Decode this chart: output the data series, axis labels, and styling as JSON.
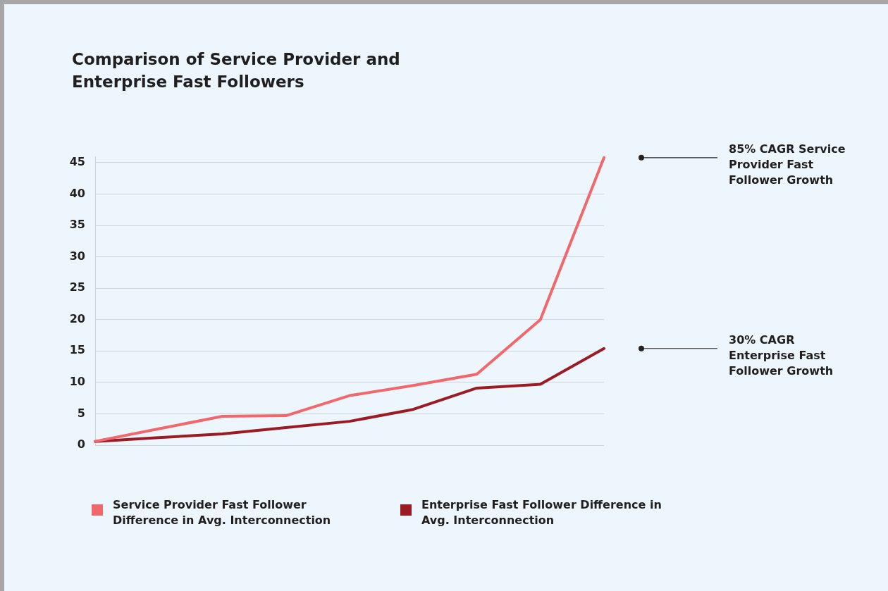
{
  "chart_data": {
    "type": "line",
    "title": "Comparison of Service Provider and Enterprise Fast Followers",
    "categories": [
      null,
      null,
      null,
      null,
      null,
      null,
      null,
      null,
      null
    ],
    "series": [
      {
        "name": "Service Provider Fast Follower Difference in Avg. Interconnection",
        "color": "#f0686b",
        "values": [
          0.6,
          2.6,
          4.6,
          4.7,
          7.9,
          9.5,
          11.3,
          20.0,
          45.8
        ]
      },
      {
        "name": "Enterprise Fast Follower Difference in Avg. Interconnection",
        "color": "#9b1b24",
        "values": [
          0.6,
          1.2,
          1.8,
          2.8,
          3.8,
          5.7,
          9.1,
          9.7,
          15.4
        ]
      }
    ],
    "annotations": [
      "85% CAGR Service Provider Fast Follower Growth",
      "30% CAGR Enterprise Fast Follower Growth"
    ],
    "ylim": [
      0,
      46
    ],
    "yticks": [
      0,
      5,
      10,
      15,
      20,
      25,
      30,
      35,
      40,
      45
    ],
    "grid": "y",
    "legend": "bottom",
    "marker": "none",
    "line_style": "solid"
  }
}
